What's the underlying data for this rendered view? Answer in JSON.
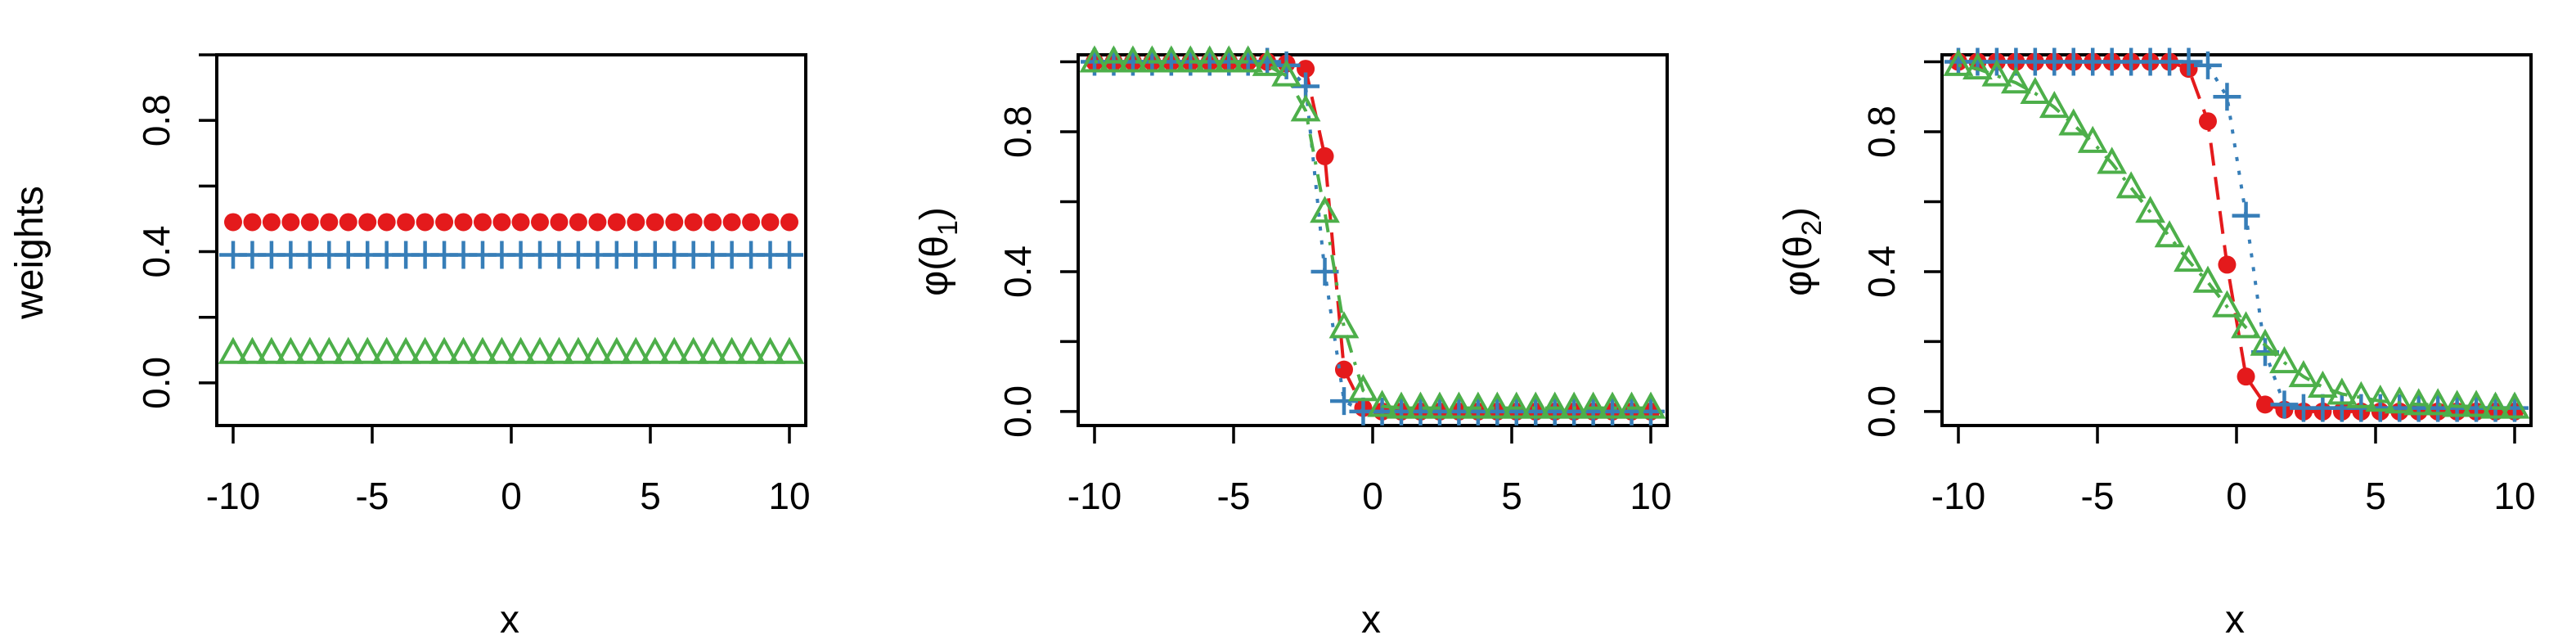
{
  "colors": {
    "red": "#e41a1c",
    "blue": "#377eb8",
    "green": "#4daf4a"
  },
  "chart_data": [
    {
      "type": "scatter",
      "title": "",
      "xlabel": "x",
      "ylabel": "weights",
      "xlim": [
        -10,
        10
      ],
      "ylim": [
        -0.13,
        1.0
      ],
      "xticks": [
        "-10",
        "-5",
        "0",
        "5",
        "10"
      ],
      "yticks": [
        "0.0",
        "0.4",
        "0.8"
      ],
      "grid": false,
      "series": [
        {
          "color": "#e41a1c",
          "marker": "filled-circle",
          "line": "none",
          "x": [
            -10,
            -9.31,
            -8.62,
            -7.93,
            -7.24,
            -6.55,
            -5.86,
            -5.17,
            -4.48,
            -3.79,
            -3.1,
            -2.41,
            -1.72,
            -1.03,
            -0.34,
            0.34,
            1.03,
            1.72,
            2.41,
            3.1,
            3.79,
            4.48,
            5.17,
            5.86,
            6.55,
            7.24,
            7.93,
            8.62,
            9.31,
            10
          ],
          "y": [
            0.49,
            0.49,
            0.49,
            0.49,
            0.49,
            0.49,
            0.49,
            0.49,
            0.49,
            0.49,
            0.49,
            0.49,
            0.49,
            0.49,
            0.49,
            0.49,
            0.49,
            0.49,
            0.49,
            0.49,
            0.49,
            0.49,
            0.49,
            0.49,
            0.49,
            0.49,
            0.49,
            0.49,
            0.49,
            0.49
          ]
        },
        {
          "color": "#377eb8",
          "marker": "plus",
          "line": "none",
          "x": [
            -10,
            -9.31,
            -8.62,
            -7.93,
            -7.24,
            -6.55,
            -5.86,
            -5.17,
            -4.48,
            -3.79,
            -3.1,
            -2.41,
            -1.72,
            -1.03,
            -0.34,
            0.34,
            1.03,
            1.72,
            2.41,
            3.1,
            3.79,
            4.48,
            5.17,
            5.86,
            6.55,
            7.24,
            7.93,
            8.62,
            9.31,
            10
          ],
          "y": [
            0.39,
            0.39,
            0.39,
            0.39,
            0.39,
            0.39,
            0.39,
            0.39,
            0.39,
            0.39,
            0.39,
            0.39,
            0.39,
            0.39,
            0.39,
            0.39,
            0.39,
            0.39,
            0.39,
            0.39,
            0.39,
            0.39,
            0.39,
            0.39,
            0.39,
            0.39,
            0.39,
            0.39,
            0.39,
            0.39
          ]
        },
        {
          "color": "#4daf4a",
          "marker": "open-triangle",
          "line": "none",
          "x": [
            -10,
            -9.31,
            -8.62,
            -7.93,
            -7.24,
            -6.55,
            -5.86,
            -5.17,
            -4.48,
            -3.79,
            -3.1,
            -2.41,
            -1.72,
            -1.03,
            -0.34,
            0.34,
            1.03,
            1.72,
            2.41,
            3.1,
            3.79,
            4.48,
            5.17,
            5.86,
            6.55,
            7.24,
            7.93,
            8.62,
            9.31,
            10
          ],
          "y": [
            0.09,
            0.09,
            0.09,
            0.09,
            0.09,
            0.09,
            0.09,
            0.09,
            0.09,
            0.09,
            0.09,
            0.09,
            0.09,
            0.09,
            0.09,
            0.09,
            0.09,
            0.09,
            0.09,
            0.09,
            0.09,
            0.09,
            0.09,
            0.09,
            0.09,
            0.09,
            0.09,
            0.09,
            0.09,
            0.09
          ]
        }
      ]
    },
    {
      "type": "line",
      "title": "",
      "xlabel": "x",
      "ylabel_main": "φ(θ",
      "ylabel_sub": "1",
      "ylabel_close": ")",
      "xlim": [
        -10,
        10
      ],
      "ylim": [
        -0.04,
        1.02
      ],
      "xticks": [
        "-10",
        "-5",
        "0",
        "5",
        "10"
      ],
      "yticks": [
        "0.0",
        "0.4",
        "0.8"
      ],
      "grid": false,
      "series": [
        {
          "color": "#e41a1c",
          "marker": "filled-circle",
          "line": "dashed",
          "x": [
            -10,
            -9.31,
            -8.62,
            -7.93,
            -7.24,
            -6.55,
            -5.86,
            -5.17,
            -4.48,
            -3.79,
            -3.1,
            -2.41,
            -1.72,
            -1.03,
            -0.34,
            0.34,
            1.03,
            1.72,
            2.41,
            3.1,
            3.79,
            4.48,
            5.17,
            5.86,
            6.55,
            7.24,
            7.93,
            8.62,
            9.31,
            10
          ],
          "y": [
            1.0,
            1.0,
            1.0,
            1.0,
            1.0,
            1.0,
            1.0,
            1.0,
            1.0,
            1.0,
            0.995,
            0.98,
            0.73,
            0.12,
            0.01,
            0.0,
            0.0,
            0.0,
            0.0,
            0.0,
            0.0,
            0.0,
            0.0,
            0.0,
            0.0,
            0.0,
            0.0,
            0.0,
            0.0,
            0.0
          ]
        },
        {
          "color": "#377eb8",
          "marker": "plus",
          "line": "dotted",
          "x": [
            -10,
            -9.31,
            -8.62,
            -7.93,
            -7.24,
            -6.55,
            -5.86,
            -5.17,
            -4.48,
            -3.79,
            -3.1,
            -2.41,
            -1.72,
            -1.03,
            -0.34,
            0.34,
            1.03,
            1.72,
            2.41,
            3.1,
            3.79,
            4.48,
            5.17,
            5.86,
            6.55,
            7.24,
            7.93,
            8.62,
            9.31,
            10
          ],
          "y": [
            1.0,
            1.0,
            1.0,
            1.0,
            1.0,
            1.0,
            1.0,
            1.0,
            1.0,
            1.0,
            0.99,
            0.93,
            0.4,
            0.03,
            0.0,
            0.0,
            0.0,
            0.0,
            0.0,
            0.0,
            0.0,
            0.0,
            0.0,
            0.0,
            0.0,
            0.0,
            0.0,
            0.0,
            0.0,
            0.0
          ]
        },
        {
          "color": "#4daf4a",
          "marker": "open-triangle",
          "line": "dashdot",
          "x": [
            -10,
            -9.31,
            -8.62,
            -7.93,
            -7.24,
            -6.55,
            -5.86,
            -5.17,
            -4.48,
            -3.79,
            -3.1,
            -2.41,
            -1.72,
            -1.03,
            -0.34,
            0.34,
            1.03,
            1.72,
            2.41,
            3.1,
            3.79,
            4.48,
            5.17,
            5.86,
            6.55,
            7.24,
            7.93,
            8.62,
            9.31,
            10
          ],
          "y": [
            1.0,
            1.0,
            1.0,
            1.0,
            1.0,
            1.0,
            1.0,
            1.0,
            1.0,
            0.99,
            0.96,
            0.86,
            0.57,
            0.24,
            0.06,
            0.015,
            0.01,
            0.01,
            0.01,
            0.01,
            0.01,
            0.01,
            0.01,
            0.01,
            0.01,
            0.01,
            0.01,
            0.01,
            0.01,
            0.01
          ]
        }
      ]
    },
    {
      "type": "line",
      "title": "",
      "xlabel": "x",
      "ylabel_main": "φ(θ",
      "ylabel_sub": "2",
      "ylabel_close": ")",
      "xlim": [
        -10,
        10
      ],
      "ylim": [
        -0.04,
        1.02
      ],
      "xticks": [
        "-10",
        "-5",
        "0",
        "5",
        "10"
      ],
      "yticks": [
        "0.0",
        "0.4",
        "0.8"
      ],
      "grid": false,
      "series": [
        {
          "color": "#e41a1c",
          "marker": "filled-circle",
          "line": "dashed",
          "x": [
            -10,
            -9.31,
            -8.62,
            -7.93,
            -7.24,
            -6.55,
            -5.86,
            -5.17,
            -4.48,
            -3.79,
            -3.1,
            -2.41,
            -1.72,
            -1.03,
            -0.34,
            0.34,
            1.03,
            1.72,
            2.41,
            3.1,
            3.79,
            4.48,
            5.17,
            5.86,
            6.55,
            7.24,
            7.93,
            8.62,
            9.31,
            10
          ],
          "y": [
            1.0,
            1.0,
            1.0,
            1.0,
            1.0,
            1.0,
            1.0,
            1.0,
            1.0,
            1.0,
            1.0,
            1.0,
            0.98,
            0.83,
            0.42,
            0.1,
            0.02,
            0.005,
            0.0,
            0.0,
            0.0,
            0.0,
            0.0,
            0.0,
            0.0,
            0.0,
            0.0,
            0.0,
            0.0,
            0.0
          ]
        },
        {
          "color": "#377eb8",
          "marker": "plus",
          "line": "dotted",
          "x": [
            -10,
            -9.31,
            -8.62,
            -7.93,
            -7.24,
            -6.55,
            -5.86,
            -5.17,
            -4.48,
            -3.79,
            -3.1,
            -2.41,
            -1.72,
            -1.03,
            -0.34,
            0.34,
            1.03,
            1.72,
            2.41,
            3.1,
            3.79,
            4.48,
            5.17,
            5.86,
            6.55,
            7.24,
            7.93,
            8.62,
            9.31,
            10
          ],
          "y": [
            1.0,
            1.0,
            1.0,
            1.0,
            1.0,
            1.0,
            1.0,
            1.0,
            1.0,
            1.0,
            1.0,
            1.0,
            1.0,
            0.99,
            0.9,
            0.56,
            0.17,
            0.02,
            0.01,
            0.01,
            0.01,
            0.01,
            0.01,
            0.01,
            0.01,
            0.01,
            0.01,
            0.01,
            0.01,
            0.01
          ]
        },
        {
          "color": "#4daf4a",
          "marker": "open-triangle",
          "line": "dashdot",
          "x": [
            -10,
            -9.31,
            -8.62,
            -7.93,
            -7.24,
            -6.55,
            -5.86,
            -5.17,
            -4.48,
            -3.79,
            -3.1,
            -2.41,
            -1.72,
            -1.03,
            -0.34,
            0.34,
            1.03,
            1.72,
            2.41,
            3.1,
            3.79,
            4.48,
            5.17,
            5.86,
            6.55,
            7.24,
            7.93,
            8.62,
            9.31,
            10
          ],
          "y": [
            0.99,
            0.98,
            0.96,
            0.94,
            0.91,
            0.87,
            0.82,
            0.77,
            0.71,
            0.64,
            0.57,
            0.5,
            0.43,
            0.37,
            0.3,
            0.24,
            0.19,
            0.14,
            0.1,
            0.07,
            0.05,
            0.04,
            0.03,
            0.025,
            0.02,
            0.02,
            0.015,
            0.015,
            0.01,
            0.01
          ]
        }
      ]
    }
  ]
}
